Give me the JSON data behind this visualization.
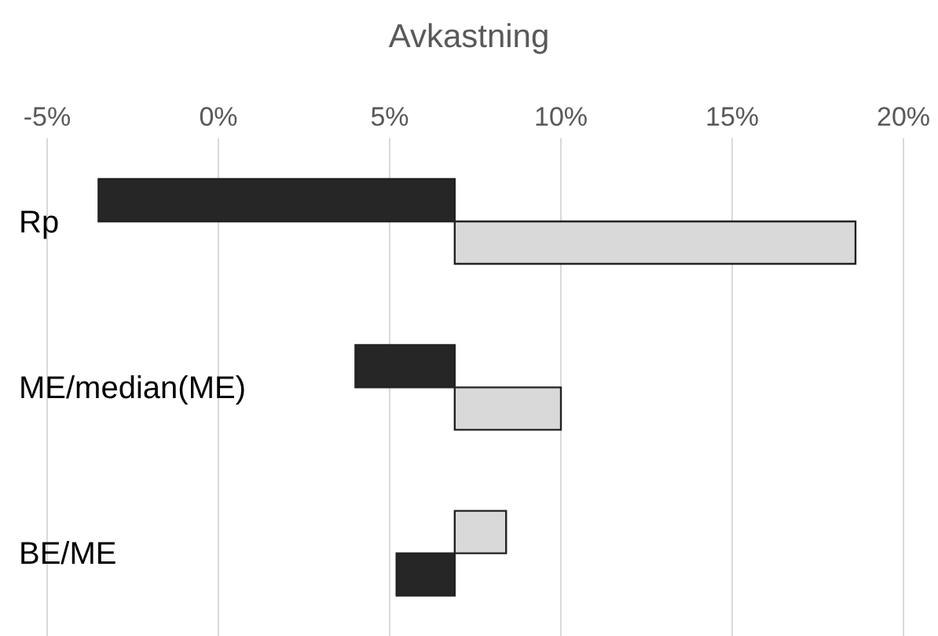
{
  "chart_data": {
    "type": "bar",
    "orientation": "horizontal",
    "xlabel": "Avkastning",
    "categories": [
      "Rp",
      "ME/median(ME)",
      "BE/ME"
    ],
    "series": [
      {
        "colors": [
          "#262626",
          "#262626",
          "#d9d9d9"
        ],
        "base": [
          6.9,
          6.9,
          6.9
        ],
        "values": [
          -10.4,
          -2.9,
          1.5
        ]
      },
      {
        "colors": [
          "#d9d9d9",
          "#d9d9d9",
          "#262626"
        ],
        "base": [
          6.9,
          6.9,
          6.9
        ],
        "values": [
          11.7,
          3.1,
          -1.7
        ]
      }
    ],
    "xlim": [
      -5,
      20
    ],
    "xticks": [
      {
        "value": -5,
        "label": "-5%"
      },
      {
        "value": 0,
        "label": "0%"
      },
      {
        "value": 5,
        "label": "5%"
      },
      {
        "value": 10,
        "label": "10%"
      },
      {
        "value": 15,
        "label": "15%"
      },
      {
        "value": 20,
        "label": "20%"
      }
    ],
    "grid": "x"
  }
}
